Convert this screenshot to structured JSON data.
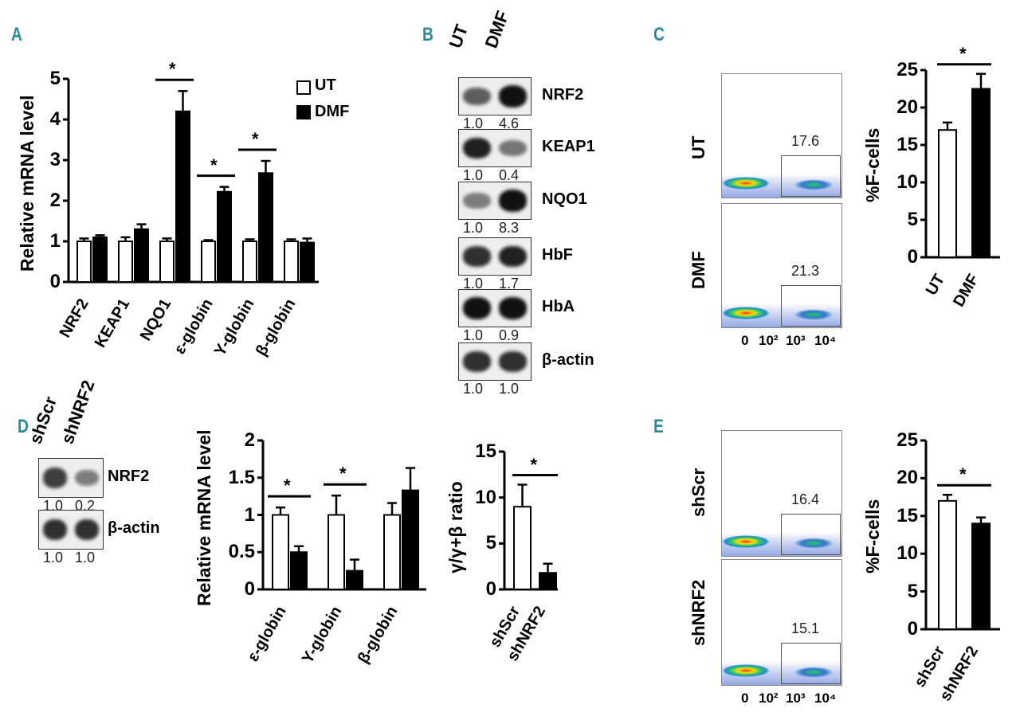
{
  "panels": {
    "a": "A",
    "b": "B",
    "c": "C",
    "d": "D",
    "e": "E"
  },
  "colors": {
    "ut": "#ffffff",
    "treated": "#000000",
    "panel_label": "#2a8a9a"
  },
  "chart_data": [
    {
      "id": "A",
      "type": "bar",
      "ylabel": "Relative mRNA level",
      "ylim": [
        0,
        5
      ],
      "yticks": [
        "0",
        "1",
        "2",
        "3",
        "4",
        "5"
      ],
      "categories": [
        "NRF2",
        "KEAP1",
        "NQO1",
        "ε-globin",
        "Y-globin",
        "β-globin"
      ],
      "series": [
        {
          "name": "UT",
          "values": [
            1,
            1,
            1,
            1,
            1,
            1
          ],
          "errors": [
            0.07,
            0.1,
            0.07,
            0.03,
            0.05,
            0.05
          ]
        },
        {
          "name": "DMF",
          "values": [
            1.1,
            1.3,
            4.2,
            2.22,
            2.68,
            0.97
          ],
          "errors": [
            0.05,
            0.12,
            0.5,
            0.12,
            0.3,
            0.1
          ]
        }
      ],
      "significance": [
        "",
        "",
        "*",
        "*",
        "*",
        ""
      ],
      "legend": [
        "UT",
        "DMF"
      ]
    },
    {
      "id": "C",
      "type": "bar",
      "ylabel": "%F-cells",
      "ylim": [
        0,
        25
      ],
      "yticks": [
        "0",
        "5",
        "10",
        "15",
        "20",
        "25"
      ],
      "categories": [
        "UT",
        "DMF"
      ],
      "values": [
        17,
        22.5
      ],
      "errors": [
        1,
        2
      ],
      "significance": "*"
    },
    {
      "id": "D1",
      "type": "bar",
      "ylabel": "Relative mRNA level",
      "ylim": [
        0,
        2
      ],
      "yticks": [
        "0",
        "0.5",
        "1",
        "1.5",
        "2"
      ],
      "categories": [
        "ε-globin",
        "Y-globin",
        "β-globin"
      ],
      "series": [
        {
          "name": "shScr",
          "values": [
            1,
            1,
            1
          ],
          "errors": [
            0.1,
            0.26,
            0.16
          ]
        },
        {
          "name": "shNRF2",
          "values": [
            0.5,
            0.25,
            1.33
          ],
          "errors": [
            0.08,
            0.15,
            0.3
          ]
        }
      ],
      "significance": [
        "*",
        "*",
        ""
      ]
    },
    {
      "id": "D2",
      "type": "bar",
      "ylabel": "γ/γ+β ratio",
      "ylim": [
        0,
        15
      ],
      "yticks": [
        "0",
        "5",
        "10",
        "15"
      ],
      "categories": [
        "shScr",
        "shNRF2"
      ],
      "values": [
        9,
        1.8
      ],
      "errors": [
        2.4,
        1
      ],
      "significance": "*"
    },
    {
      "id": "E",
      "type": "bar",
      "ylabel": "%F-cells",
      "ylim": [
        0,
        25
      ],
      "yticks": [
        "0",
        "5",
        "10",
        "15",
        "20",
        "25"
      ],
      "categories": [
        "shScr",
        "shNRF2"
      ],
      "values": [
        17,
        14
      ],
      "errors": [
        0.8,
        0.8
      ],
      "significance": "*"
    }
  ],
  "blot_b": {
    "lanes": [
      "UT",
      "DMF"
    ],
    "rows": [
      {
        "label": "NRF2",
        "q": [
          "1.0",
          "4.6"
        ],
        "i": [
          0.5,
          1
        ]
      },
      {
        "label": "KEAP1",
        "q": [
          "1.0",
          "0.4"
        ],
        "i": [
          0.9,
          0.35
        ]
      },
      {
        "label": "NQO1",
        "q": [
          "1.0",
          "8.3"
        ],
        "i": [
          0.3,
          1
        ]
      },
      {
        "label": "HbF",
        "q": [
          "1.0",
          "1.7"
        ],
        "i": [
          0.8,
          0.9
        ]
      },
      {
        "label": "HbA",
        "q": [
          "1.0",
          "0.9"
        ],
        "i": [
          1,
          1
        ]
      },
      {
        "label": "β-actin",
        "q": [
          "1.0",
          "1.0"
        ],
        "i": [
          0.8,
          0.8
        ]
      }
    ]
  },
  "blot_d": {
    "lanes": [
      "shScr",
      "shNRF2"
    ],
    "rows": [
      {
        "label": "NRF2",
        "q": [
          "1.0",
          "0.2"
        ],
        "i": [
          0.7,
          0.3
        ]
      },
      {
        "label": "β-actin",
        "q": [
          "1.0",
          "1.0"
        ],
        "i": [
          0.8,
          0.8
        ]
      }
    ]
  },
  "flow_c": {
    "rows": [
      {
        "label": "UT",
        "gate": "17.6"
      },
      {
        "label": "DMF",
        "gate": "21.3"
      }
    ],
    "xaxis": [
      "0",
      "10²",
      "10³",
      "10⁴"
    ]
  },
  "flow_e": {
    "rows": [
      {
        "label": "shScr",
        "gate": "16.4"
      },
      {
        "label": "shNRF2",
        "gate": "15.1"
      }
    ],
    "xaxis": [
      "0",
      "10²",
      "10³",
      "10⁴"
    ]
  }
}
